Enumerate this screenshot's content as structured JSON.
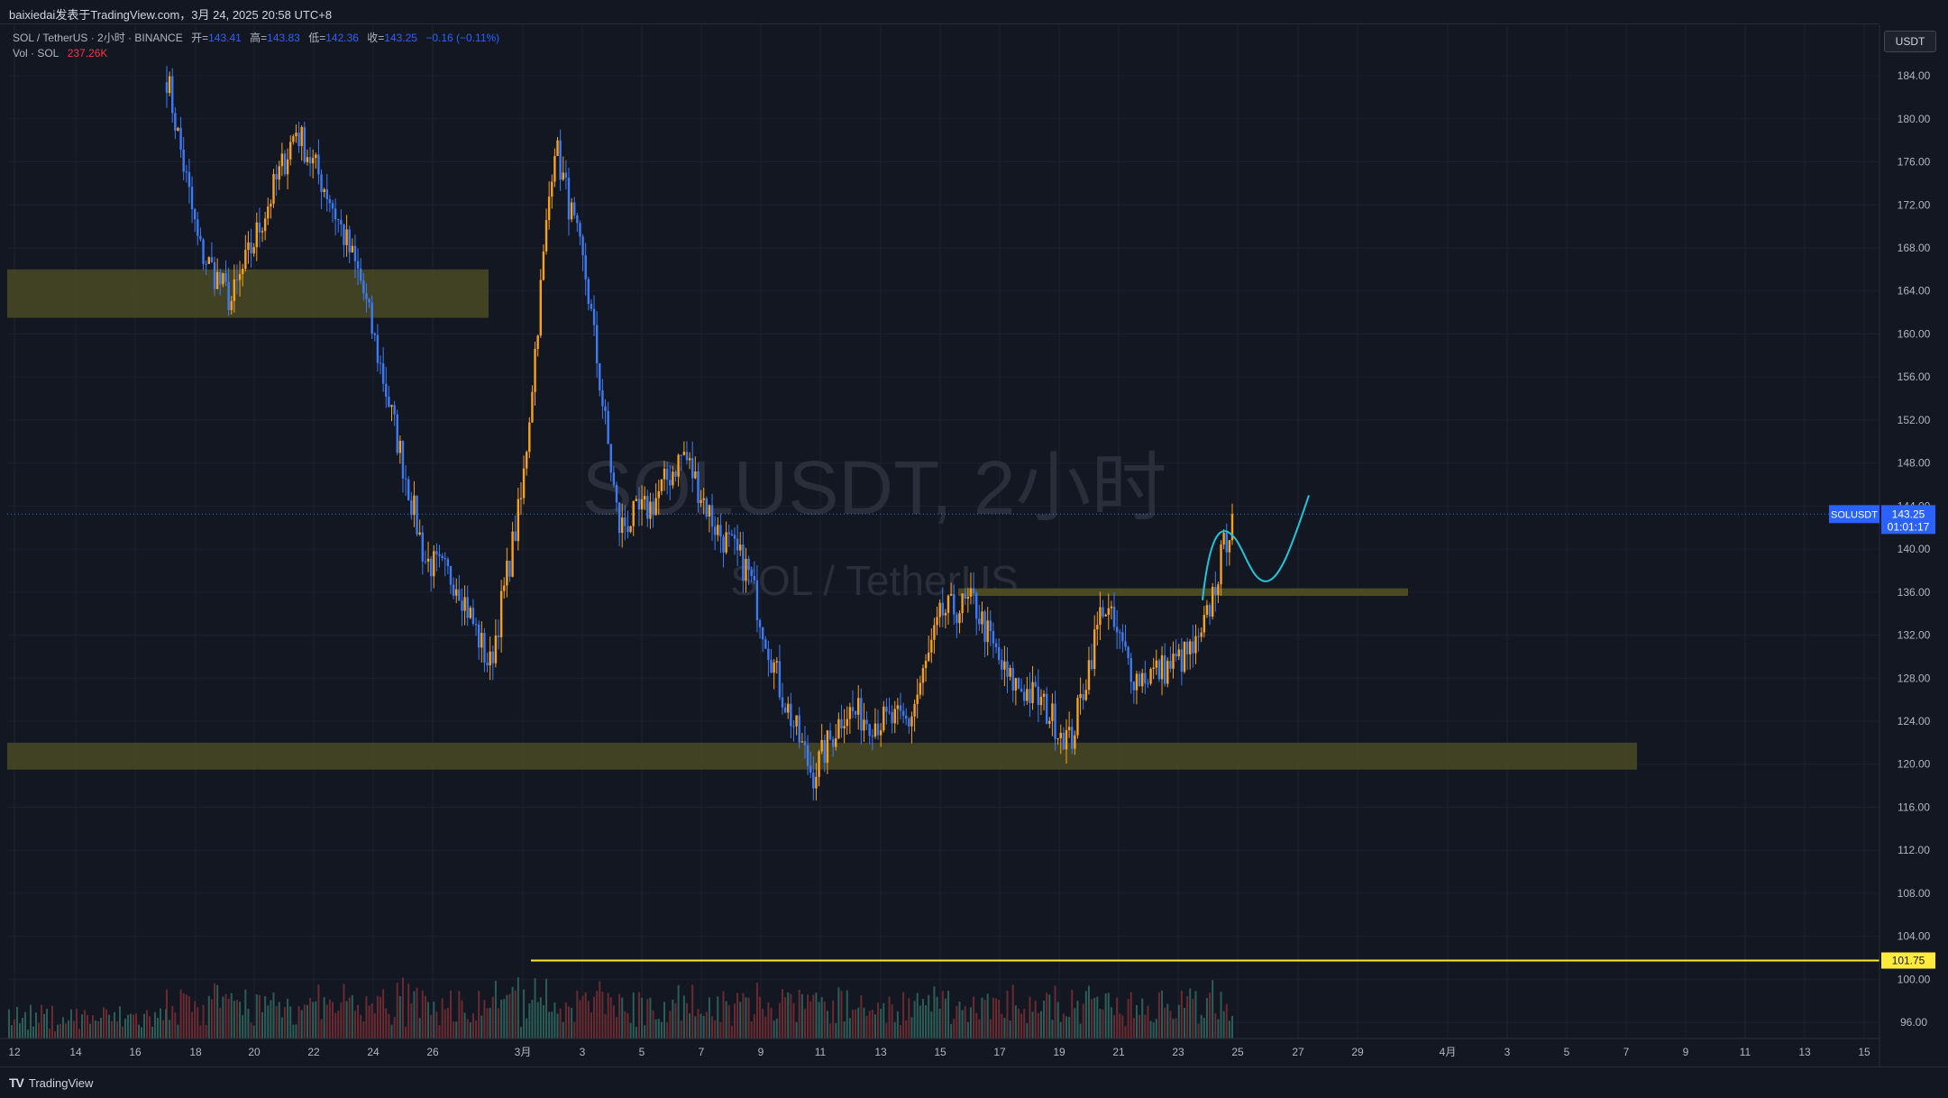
{
  "header": {
    "publisher": "baixiedai发表于TradingView.com，3月 24, 2025 20:58 UTC+8"
  },
  "legend": {
    "symbol": "SOL / TetherUS · 2小时 · BINANCE",
    "open_label": "开=",
    "open_value": "143.41",
    "high_label": "高=",
    "high_value": "143.83",
    "low_label": "低=",
    "low_value": "142.36",
    "close_label": "收=",
    "close_value": "143.25",
    "change": "−0.16 (−0.11%)",
    "vol_label": "Vol · SOL",
    "vol_value": "237.26K"
  },
  "watermark": {
    "main": "SOLUSDT, 2小时",
    "sub": "SOL / TetherUS"
  },
  "currency_button": "USDT",
  "price_tag": {
    "symbol": "SOLUSDT",
    "price": "143.25",
    "countdown": "01:01:17"
  },
  "line_tag": "101.75",
  "footer": {
    "brand": "TradingView"
  },
  "colors": {
    "background": "#131722",
    "up": "#f7a21b",
    "down": "#3d7bf5",
    "zone": "#4a4a25",
    "support_line": "#ffeb3b",
    "projection": "#22c5d8",
    "price_tag": "#2962ff"
  },
  "chart_data": {
    "type": "candlestick",
    "y_axis": {
      "ticks": [
        "96.00",
        "100.00",
        "104.00",
        "108.00",
        "112.00",
        "116.00",
        "120.00",
        "124.00",
        "128.00",
        "132.00",
        "136.00",
        "140.00",
        "144.00",
        "148.00",
        "152.00",
        "156.00",
        "160.00",
        "164.00",
        "168.00",
        "172.00",
        "176.00",
        "180.00",
        "184.00"
      ],
      "range": [
        94.5,
        188.7
      ]
    },
    "x_axis": {
      "ticks": [
        "12",
        "14",
        "16",
        "18",
        "20",
        "22",
        "24",
        "26",
        "3月",
        "3",
        "5",
        "7",
        "9",
        "11",
        "13",
        "15",
        "17",
        "19",
        "21",
        "23",
        "25",
        "27",
        "29",
        "4月",
        "3",
        "5",
        "7",
        "9",
        "11",
        "13",
        "15"
      ]
    },
    "key_prices": [
      {
        "date": "Feb 17",
        "price": 184
      },
      {
        "date": "Feb 18",
        "price": 168
      },
      {
        "date": "Feb 19",
        "price": 163
      },
      {
        "date": "Feb 21",
        "price": 171
      },
      {
        "date": "Feb 22",
        "price": 179
      },
      {
        "date": "Feb 23",
        "price": 173
      },
      {
        "date": "Feb 24",
        "price": 165
      },
      {
        "date": "Feb 25",
        "price": 152
      },
      {
        "date": "Feb 26",
        "price": 139
      },
      {
        "date": "Feb 27",
        "price": 137
      },
      {
        "date": "Feb 28",
        "price": 129
      },
      {
        "date": "Mar 1",
        "price": 145
      },
      {
        "date": "Mar 2",
        "price": 178
      },
      {
        "date": "Mar 3",
        "price": 165
      },
      {
        "date": "Mar 4",
        "price": 142
      },
      {
        "date": "Mar 5",
        "price": 144
      },
      {
        "date": "Mar 6",
        "price": 149
      },
      {
        "date": "Mar 7",
        "price": 142
      },
      {
        "date": "Mar 9",
        "price": 138
      },
      {
        "date": "Mar 10",
        "price": 127
      },
      {
        "date": "Mar 11",
        "price": 119
      },
      {
        "date": "Mar 12",
        "price": 125
      },
      {
        "date": "Mar 13",
        "price": 124
      },
      {
        "date": "Mar 14",
        "price": 124
      },
      {
        "date": "Mar 15",
        "price": 134
      },
      {
        "date": "Mar 16",
        "price": 135
      },
      {
        "date": "Mar 17",
        "price": 128
      },
      {
        "date": "Mar 18",
        "price": 126
      },
      {
        "date": "Mar 19",
        "price": 122
      },
      {
        "date": "Mar 20",
        "price": 135
      },
      {
        "date": "Mar 21",
        "price": 128
      },
      {
        "date": "Mar 22",
        "price": 129
      },
      {
        "date": "Mar 23",
        "price": 131
      },
      {
        "date": "Mar 24",
        "price": 143.25
      }
    ],
    "current_price": 143.25,
    "annotations": {
      "zones": [
        {
          "from_price": 161.5,
          "to_price": 166
        },
        {
          "from_price": 119.5,
          "to_price": 122
        }
      ],
      "resistance_band": 136,
      "support_line": 101.75,
      "projection_path": [
        143.25,
        141,
        137,
        140,
        145
      ]
    }
  }
}
